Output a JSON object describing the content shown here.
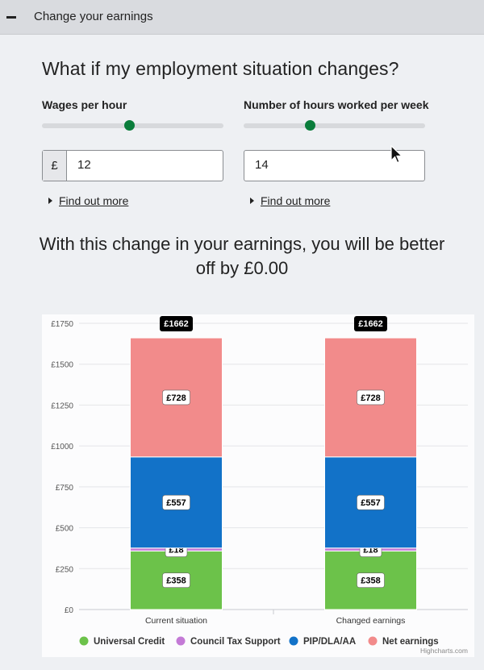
{
  "topbar": {
    "title": "Change your earnings"
  },
  "heading": "What if my employment situation changes?",
  "wages": {
    "label": "Wages per hour",
    "prefix": "£",
    "value": "12",
    "slider_fraction": 0.48
  },
  "hours": {
    "label": "Number of hours worked per week",
    "value": "14",
    "slider_fraction": 0.36
  },
  "find_out_more": "Find out more",
  "result_text": "With this change in your earnings, you will be better off by £0.00",
  "chart_data": {
    "type": "bar",
    "stacked": true,
    "categories": [
      "Current situation",
      "Changed earnings"
    ],
    "series": [
      {
        "name": "Universal Credit",
        "color": "#6cc24a",
        "values": [
          358,
          358
        ]
      },
      {
        "name": "Council Tax Support",
        "color": "#c47ad6",
        "values": [
          18,
          18
        ]
      },
      {
        "name": "PIP/DLA/AA",
        "color": "#1272c8",
        "values": [
          557,
          557
        ]
      },
      {
        "name": "Net earnings",
        "color": "#f28b8b",
        "values": [
          728,
          728
        ]
      }
    ],
    "totals": [
      "£1662",
      "£1662"
    ],
    "data_labels": [
      "£358",
      "£18",
      "£557",
      "£728"
    ],
    "yticks": [
      "£0",
      "£250",
      "£500",
      "£750",
      "£1000",
      "£1250",
      "£1500",
      "£1750"
    ],
    "ylim": [
      0,
      1750
    ],
    "legend_position": "bottom",
    "credit": "Highcharts.com"
  }
}
